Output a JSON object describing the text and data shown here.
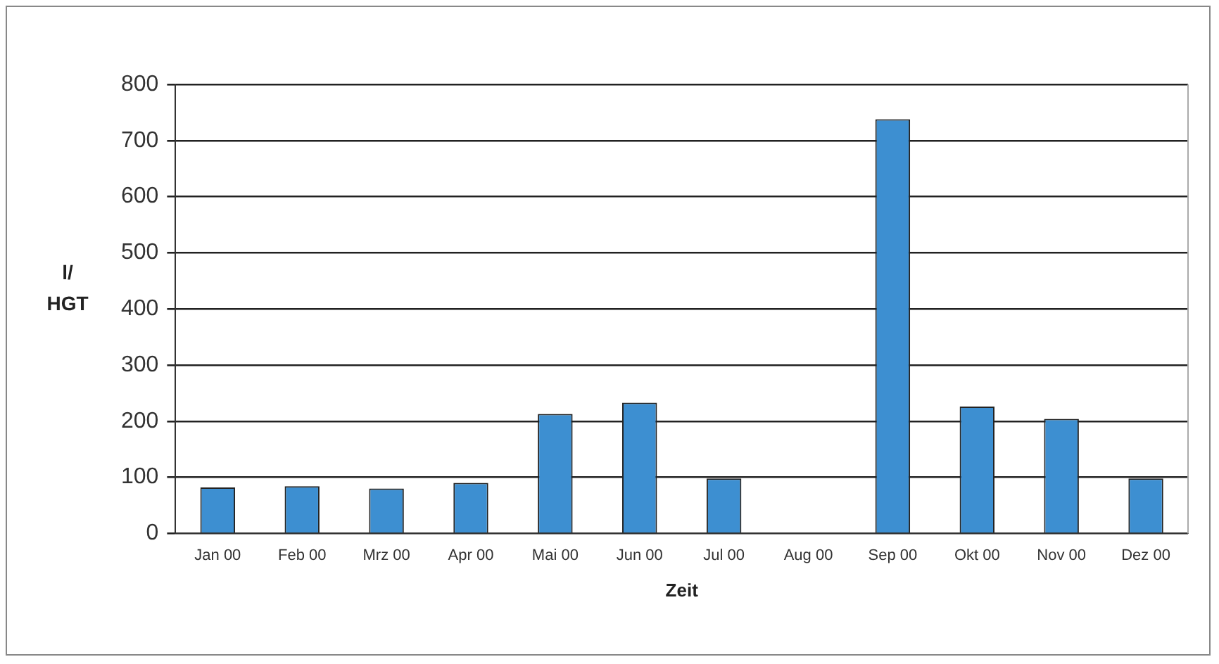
{
  "chart_data": {
    "type": "bar",
    "xlabel": "Zeit",
    "ylabel": "l/ HGT",
    "categories": [
      "Jan 00",
      "Feb 00",
      "Mrz 00",
      "Apr 00",
      "Mai 00",
      "Jun 00",
      "Jul 00",
      "Aug 00",
      "Sep 00",
      "Okt 00",
      "Nov 00",
      "Dez 00"
    ],
    "values": [
      82,
      84,
      80,
      90,
      213,
      233,
      98,
      null,
      738,
      226,
      204,
      98
    ],
    "color": "#3d8fd1",
    "ylim": [
      0,
      800
    ],
    "yticks": [
      0,
      100,
      200,
      300,
      400,
      500,
      600,
      700,
      800
    ],
    "grid": "y",
    "legend": false
  }
}
